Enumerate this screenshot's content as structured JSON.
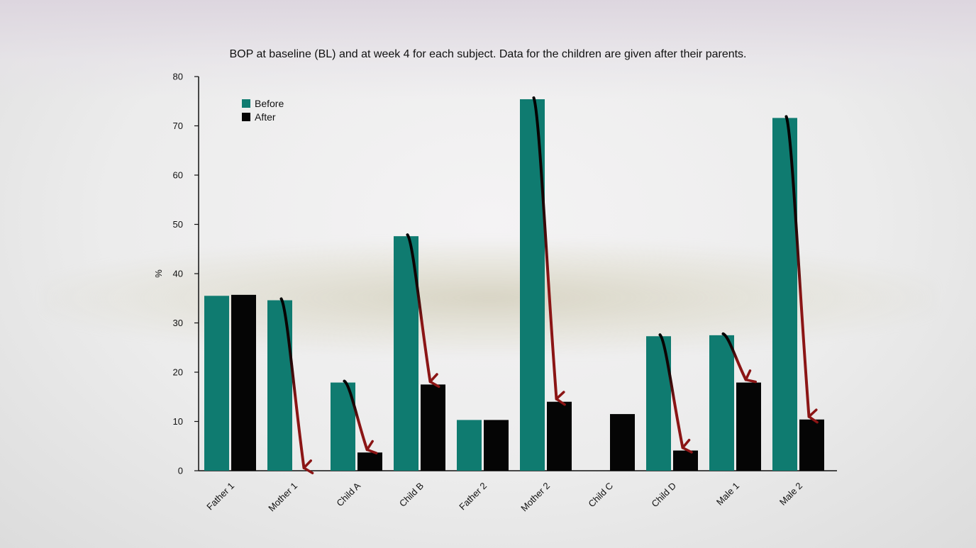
{
  "chart_data": {
    "type": "bar",
    "title": "BOP at baseline (BL) and at week 4 for each subject. Data for the children are given after their parents.",
    "xlabel": "",
    "ylabel": "%",
    "ylim": [
      0,
      80
    ],
    "yticks": [
      "0",
      "10",
      "20",
      "30",
      "40",
      "50",
      "60",
      "70",
      "80"
    ],
    "categories": [
      "Father 1",
      "Mother 1",
      "Child A",
      "Child B",
      "Father 2",
      "Mother 2",
      "Child C",
      "Child D",
      "Male 1",
      "Male 2"
    ],
    "series": [
      {
        "name": "Before",
        "color": "#0f7b70",
        "values": [
          35.5,
          34.6,
          17.9,
          47.6,
          10.3,
          75.4,
          0,
          27.3,
          27.5,
          71.6
        ]
      },
      {
        "name": "After",
        "color": "#050505",
        "values": [
          35.7,
          0,
          3.7,
          17.5,
          10.3,
          14.0,
          11.5,
          4.1,
          17.9,
          10.4
        ]
      }
    ],
    "legend": "top-left",
    "grid": false,
    "annotations": "red arrows from Before bar top to After bar top for Mother 1, Child A, Child B, Mother 2, Child D, Male 1, Male 2",
    "arrow_color": "#8b1515",
    "arrow_categories": [
      "Mother 1",
      "Child A",
      "Child B",
      "Mother 2",
      "Child D",
      "Male 1",
      "Male 2"
    ]
  }
}
